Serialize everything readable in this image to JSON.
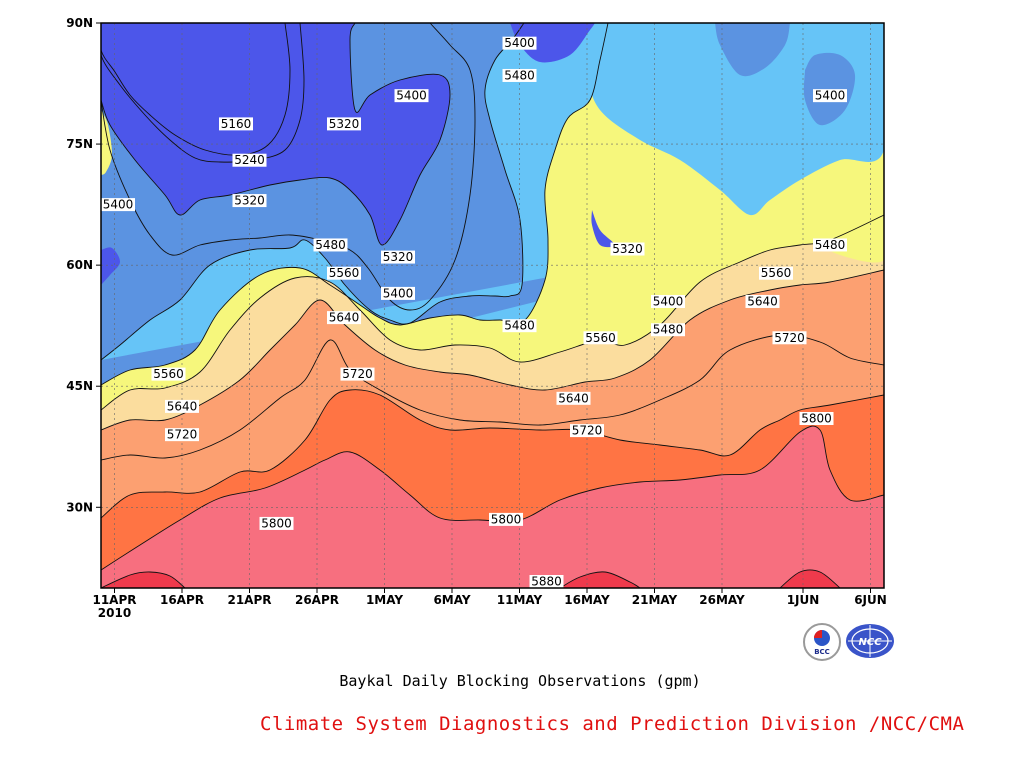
{
  "chart_data": {
    "type": "contour",
    "title": "Baykal Daily Blocking Observations (gpm)",
    "x_ticks": [
      "11APR 2010",
      "16APR",
      "21APR",
      "26APR",
      "1MAY",
      "6MAY",
      "11MAY",
      "16MAY",
      "21MAY",
      "26MAY",
      "1JUN",
      "6JUN"
    ],
    "y_ticks": [
      "90N",
      "75N",
      "60N",
      "45N",
      "30N"
    ],
    "xlim": [
      "2010-04-10",
      "2010-06-07"
    ],
    "ylim_degN": [
      20,
      90
    ],
    "contour_levels": [
      5160,
      5240,
      5320,
      5400,
      5480,
      5560,
      5640,
      5720,
      5800,
      5880
    ],
    "level_colors": [
      "#0c136e",
      "#2434e4",
      "#4c56ea",
      "#5b93e1",
      "#66c4f7",
      "#f6f77c",
      "#fbdd9e",
      "#fca071",
      "#ff7444",
      "#f76f7f",
      "#ef3a4c"
    ],
    "contour_labels": [
      {
        "value": "5160",
        "date": "2010-04-20",
        "lat": 77.5
      },
      {
        "value": "5240",
        "date": "2010-04-21",
        "lat": 73
      },
      {
        "value": "5320",
        "date": "2010-04-21",
        "lat": 68
      },
      {
        "value": "5400",
        "date": "2010-04-10",
        "lat": 67.5
      },
      {
        "value": "5320",
        "date": "2010-04-28",
        "lat": 77.5
      },
      {
        "value": "5400",
        "date": "2010-05-03",
        "lat": 81
      },
      {
        "value": "5480",
        "date": "2010-04-27",
        "lat": 62.5
      },
      {
        "value": "5560",
        "date": "2010-04-28",
        "lat": 59
      },
      {
        "value": "5320",
        "date": "2010-05-02",
        "lat": 61
      },
      {
        "value": "5400",
        "date": "2010-05-02",
        "lat": 56.5
      },
      {
        "value": "5400",
        "date": "2010-05-11",
        "lat": 87.5
      },
      {
        "value": "5480",
        "date": "2010-05-11",
        "lat": 83.5
      },
      {
        "value": "5480",
        "date": "2010-05-11",
        "lat": 52.5
      },
      {
        "value": "5320",
        "date": "2010-05-19",
        "lat": 62
      },
      {
        "value": "5400",
        "date": "2010-05-22",
        "lat": 55.5
      },
      {
        "value": "5480",
        "date": "2010-05-22",
        "lat": 52
      },
      {
        "value": "5560",
        "date": "2010-05-17",
        "lat": 51
      },
      {
        "value": "5400",
        "date": "2010-06-03",
        "lat": 81
      },
      {
        "value": "5480",
        "date": "2010-06-03",
        "lat": 62.5
      },
      {
        "value": "5560",
        "date": "2010-05-30",
        "lat": 59
      },
      {
        "value": "5640",
        "date": "2010-05-29",
        "lat": 55.5
      },
      {
        "value": "5720",
        "date": "2010-05-31",
        "lat": 51
      },
      {
        "value": "5560",
        "date": "2010-04-15",
        "lat": 46.5
      },
      {
        "value": "5640",
        "date": "2010-04-16",
        "lat": 42.5
      },
      {
        "value": "5720",
        "date": "2010-04-16",
        "lat": 39
      },
      {
        "value": "5640",
        "date": "2010-04-28",
        "lat": 53.5
      },
      {
        "value": "5720",
        "date": "2010-04-29",
        "lat": 46.5
      },
      {
        "value": "5640",
        "date": "2010-05-15",
        "lat": 43.5
      },
      {
        "value": "5720",
        "date": "2010-05-16",
        "lat": 39.5
      },
      {
        "value": "5800",
        "date": "2010-04-23",
        "lat": 28
      },
      {
        "value": "5800",
        "date": "2010-05-10",
        "lat": 28.5
      },
      {
        "value": "5800",
        "date": "2010-06-02",
        "lat": 41
      },
      {
        "value": "5880",
        "date": "2010-05-13",
        "lat": 20
      }
    ],
    "grid": true
  },
  "caption": "Baykal Daily Blocking Observations (gpm)",
  "credit": "Climate System Diagnostics and Prediction Division /NCC/CMA",
  "logos": [
    {
      "name": "bcc-logo",
      "text": "BCC"
    },
    {
      "name": "ncc-logo",
      "text": "NCC"
    }
  ]
}
